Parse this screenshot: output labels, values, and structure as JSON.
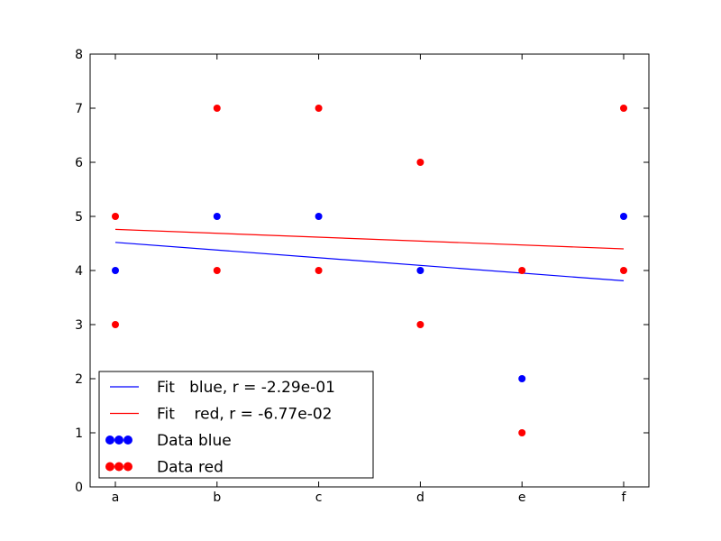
{
  "chart_data": {
    "type": "scatter",
    "categories": [
      "a",
      "b",
      "c",
      "d",
      "e",
      "f"
    ],
    "y_ticks": [
      "0",
      "1",
      "2",
      "3",
      "4",
      "5",
      "6",
      "7",
      "8"
    ],
    "ylim": [
      0,
      8
    ],
    "grid": false,
    "legend_position": "lower-left",
    "series": [
      {
        "name": "Data blue",
        "color": "#0000ff",
        "points": [
          {
            "x": "a",
            "y": 4
          },
          {
            "x": "b",
            "y": 5
          },
          {
            "x": "c",
            "y": 5
          },
          {
            "x": "d",
            "y": 4
          },
          {
            "x": "e",
            "y": 2
          },
          {
            "x": "f",
            "y": 5
          }
        ]
      },
      {
        "name": "Data red",
        "color": "#ff0000",
        "points": [
          {
            "x": "a",
            "y": 5
          },
          {
            "x": "a",
            "y": 3
          },
          {
            "x": "b",
            "y": 7
          },
          {
            "x": "b",
            "y": 4
          },
          {
            "x": "c",
            "y": 7
          },
          {
            "x": "c",
            "y": 4
          },
          {
            "x": "d",
            "y": 6
          },
          {
            "x": "d",
            "y": 3
          },
          {
            "x": "e",
            "y": 4
          },
          {
            "x": "e",
            "y": 1
          },
          {
            "x": "f",
            "y": 7
          },
          {
            "x": "f",
            "y": 4
          }
        ]
      }
    ],
    "fits": [
      {
        "name": "Fit   blue, r = -2.29e-01",
        "color": "#0000ff",
        "start": {
          "x": "a",
          "y": 4.52
        },
        "end": {
          "x": "f",
          "y": 3.81
        }
      },
      {
        "name": "Fit    red, r = -6.77e-02",
        "color": "#ff0000",
        "start": {
          "x": "a",
          "y": 4.76
        },
        "end": {
          "x": "f",
          "y": 4.4
        }
      }
    ],
    "legend": [
      {
        "label": "Fit   blue, r = -2.29e-01",
        "kind": "line",
        "color": "#0000ff"
      },
      {
        "label": "Fit    red, r = -6.77e-02",
        "kind": "line",
        "color": "#ff0000"
      },
      {
        "label": "Data blue",
        "kind": "marker",
        "color": "#0000ff"
      },
      {
        "label": "Data red",
        "kind": "marker",
        "color": "#ff0000"
      }
    ]
  }
}
